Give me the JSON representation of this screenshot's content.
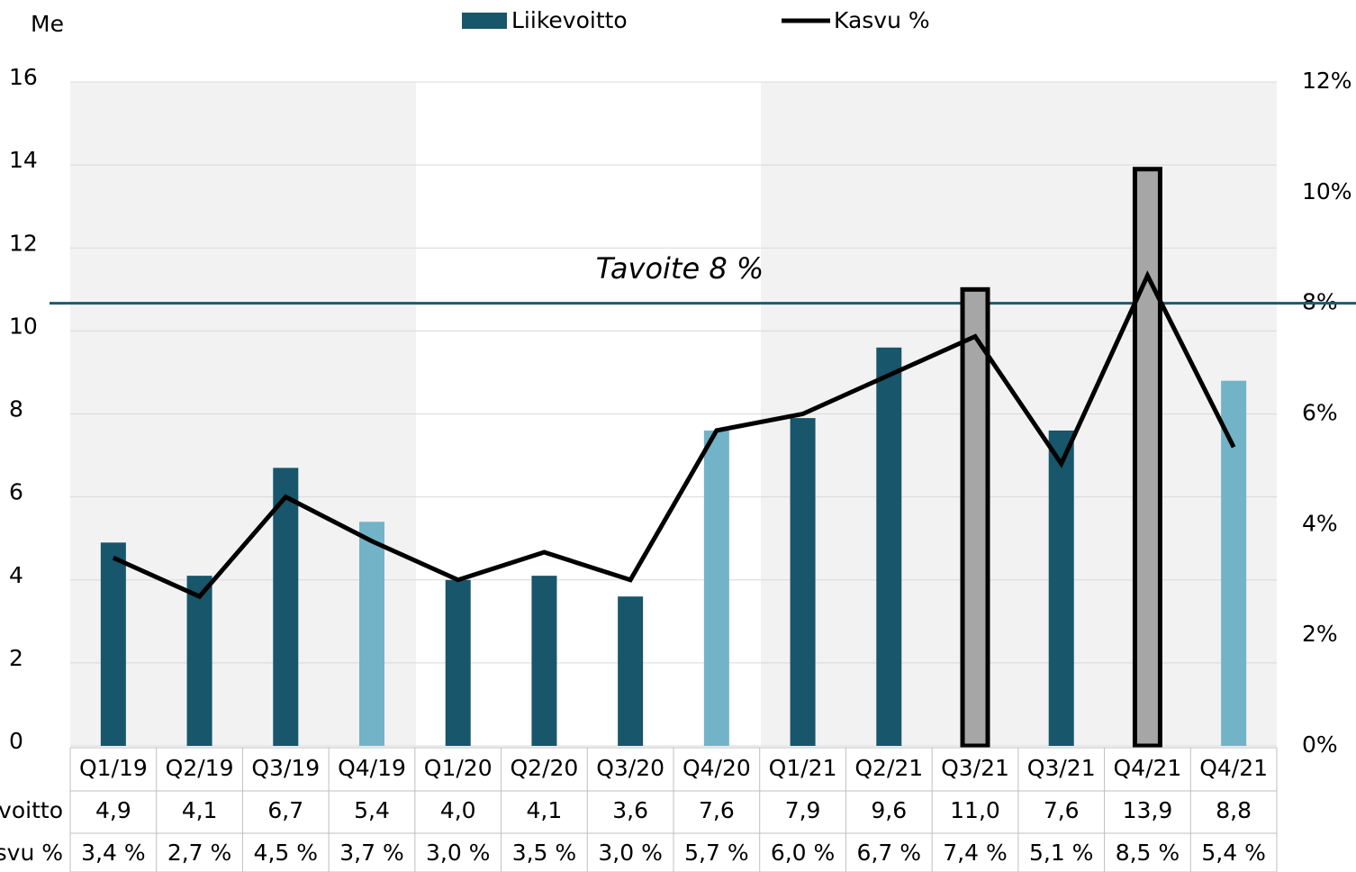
{
  "chart_data": {
    "type": "bar",
    "y_label": "Me",
    "categories": [
      "Q1/19",
      "Q2/19",
      "Q3/19",
      "Q4/19",
      "Q1/20",
      "Q2/20",
      "Q3/20",
      "Q4/20",
      "Q1/21",
      "Q2/21",
      "Q3/21",
      "Q3/21",
      "Q4/21",
      "Q4/21"
    ],
    "series": [
      {
        "name": "Liikevoitto",
        "type": "bar",
        "color": "#17566b",
        "colors": [
          "#17566b",
          "#17566b",
          "#17566b",
          "#72b3c7",
          "#17566b",
          "#17566b",
          "#17566b",
          "#72b3c7",
          "#17566b",
          "#17566b",
          "#a6a6a6",
          "#17566b",
          "#a6a6a6",
          "#72b3c7"
        ],
        "values": [
          4.9,
          4.1,
          6.7,
          5.4,
          4.0,
          4.1,
          3.6,
          7.6,
          7.9,
          9.6,
          11.0,
          7.6,
          13.9,
          8.8
        ],
        "value_labels": [
          "4,9",
          "4,1",
          "6,7",
          "5,4",
          "4,0",
          "4,1",
          "3,6",
          "7,6",
          "7,9",
          "9,6",
          "11,0",
          "7,6",
          "13,9",
          "8,8"
        ]
      },
      {
        "name": "Kasvu %",
        "type": "line",
        "axis": "y2",
        "color": "#000000",
        "values": [
          3.4,
          2.7,
          4.5,
          3.7,
          3.0,
          3.5,
          3.0,
          5.7,
          6.0,
          6.7,
          7.4,
          5.1,
          8.5,
          5.4
        ],
        "value_labels": [
          "3,4 %",
          "2,7 %",
          "4,5 %",
          "3,7 %",
          "3,0 %",
          "3,5 %",
          "3,0 %",
          "5,7 %",
          "6,0 %",
          "6,7 %",
          "7,4 %",
          "5,1 %",
          "8,5 %",
          "5,4 %"
        ]
      }
    ],
    "ylim": [
      0,
      16
    ],
    "yticks": [
      0,
      2,
      4,
      6,
      8,
      10,
      12,
      14,
      16
    ],
    "y2lim": [
      0,
      12
    ],
    "y2ticks": [
      {
        "value": 0,
        "label": "0%"
      },
      {
        "value": 2,
        "label": "2%"
      },
      {
        "value": 4,
        "label": "4%"
      },
      {
        "value": 6,
        "label": "6%"
      },
      {
        "value": 8,
        "label": "8%"
      },
      {
        "value": 10,
        "label": "10%"
      },
      {
        "value": 12,
        "label": "12%"
      }
    ],
    "target": {
      "value": 8,
      "label": "Tavoite 8 %",
      "color": "#1f5a6e"
    },
    "grid": true,
    "legend": "top"
  }
}
